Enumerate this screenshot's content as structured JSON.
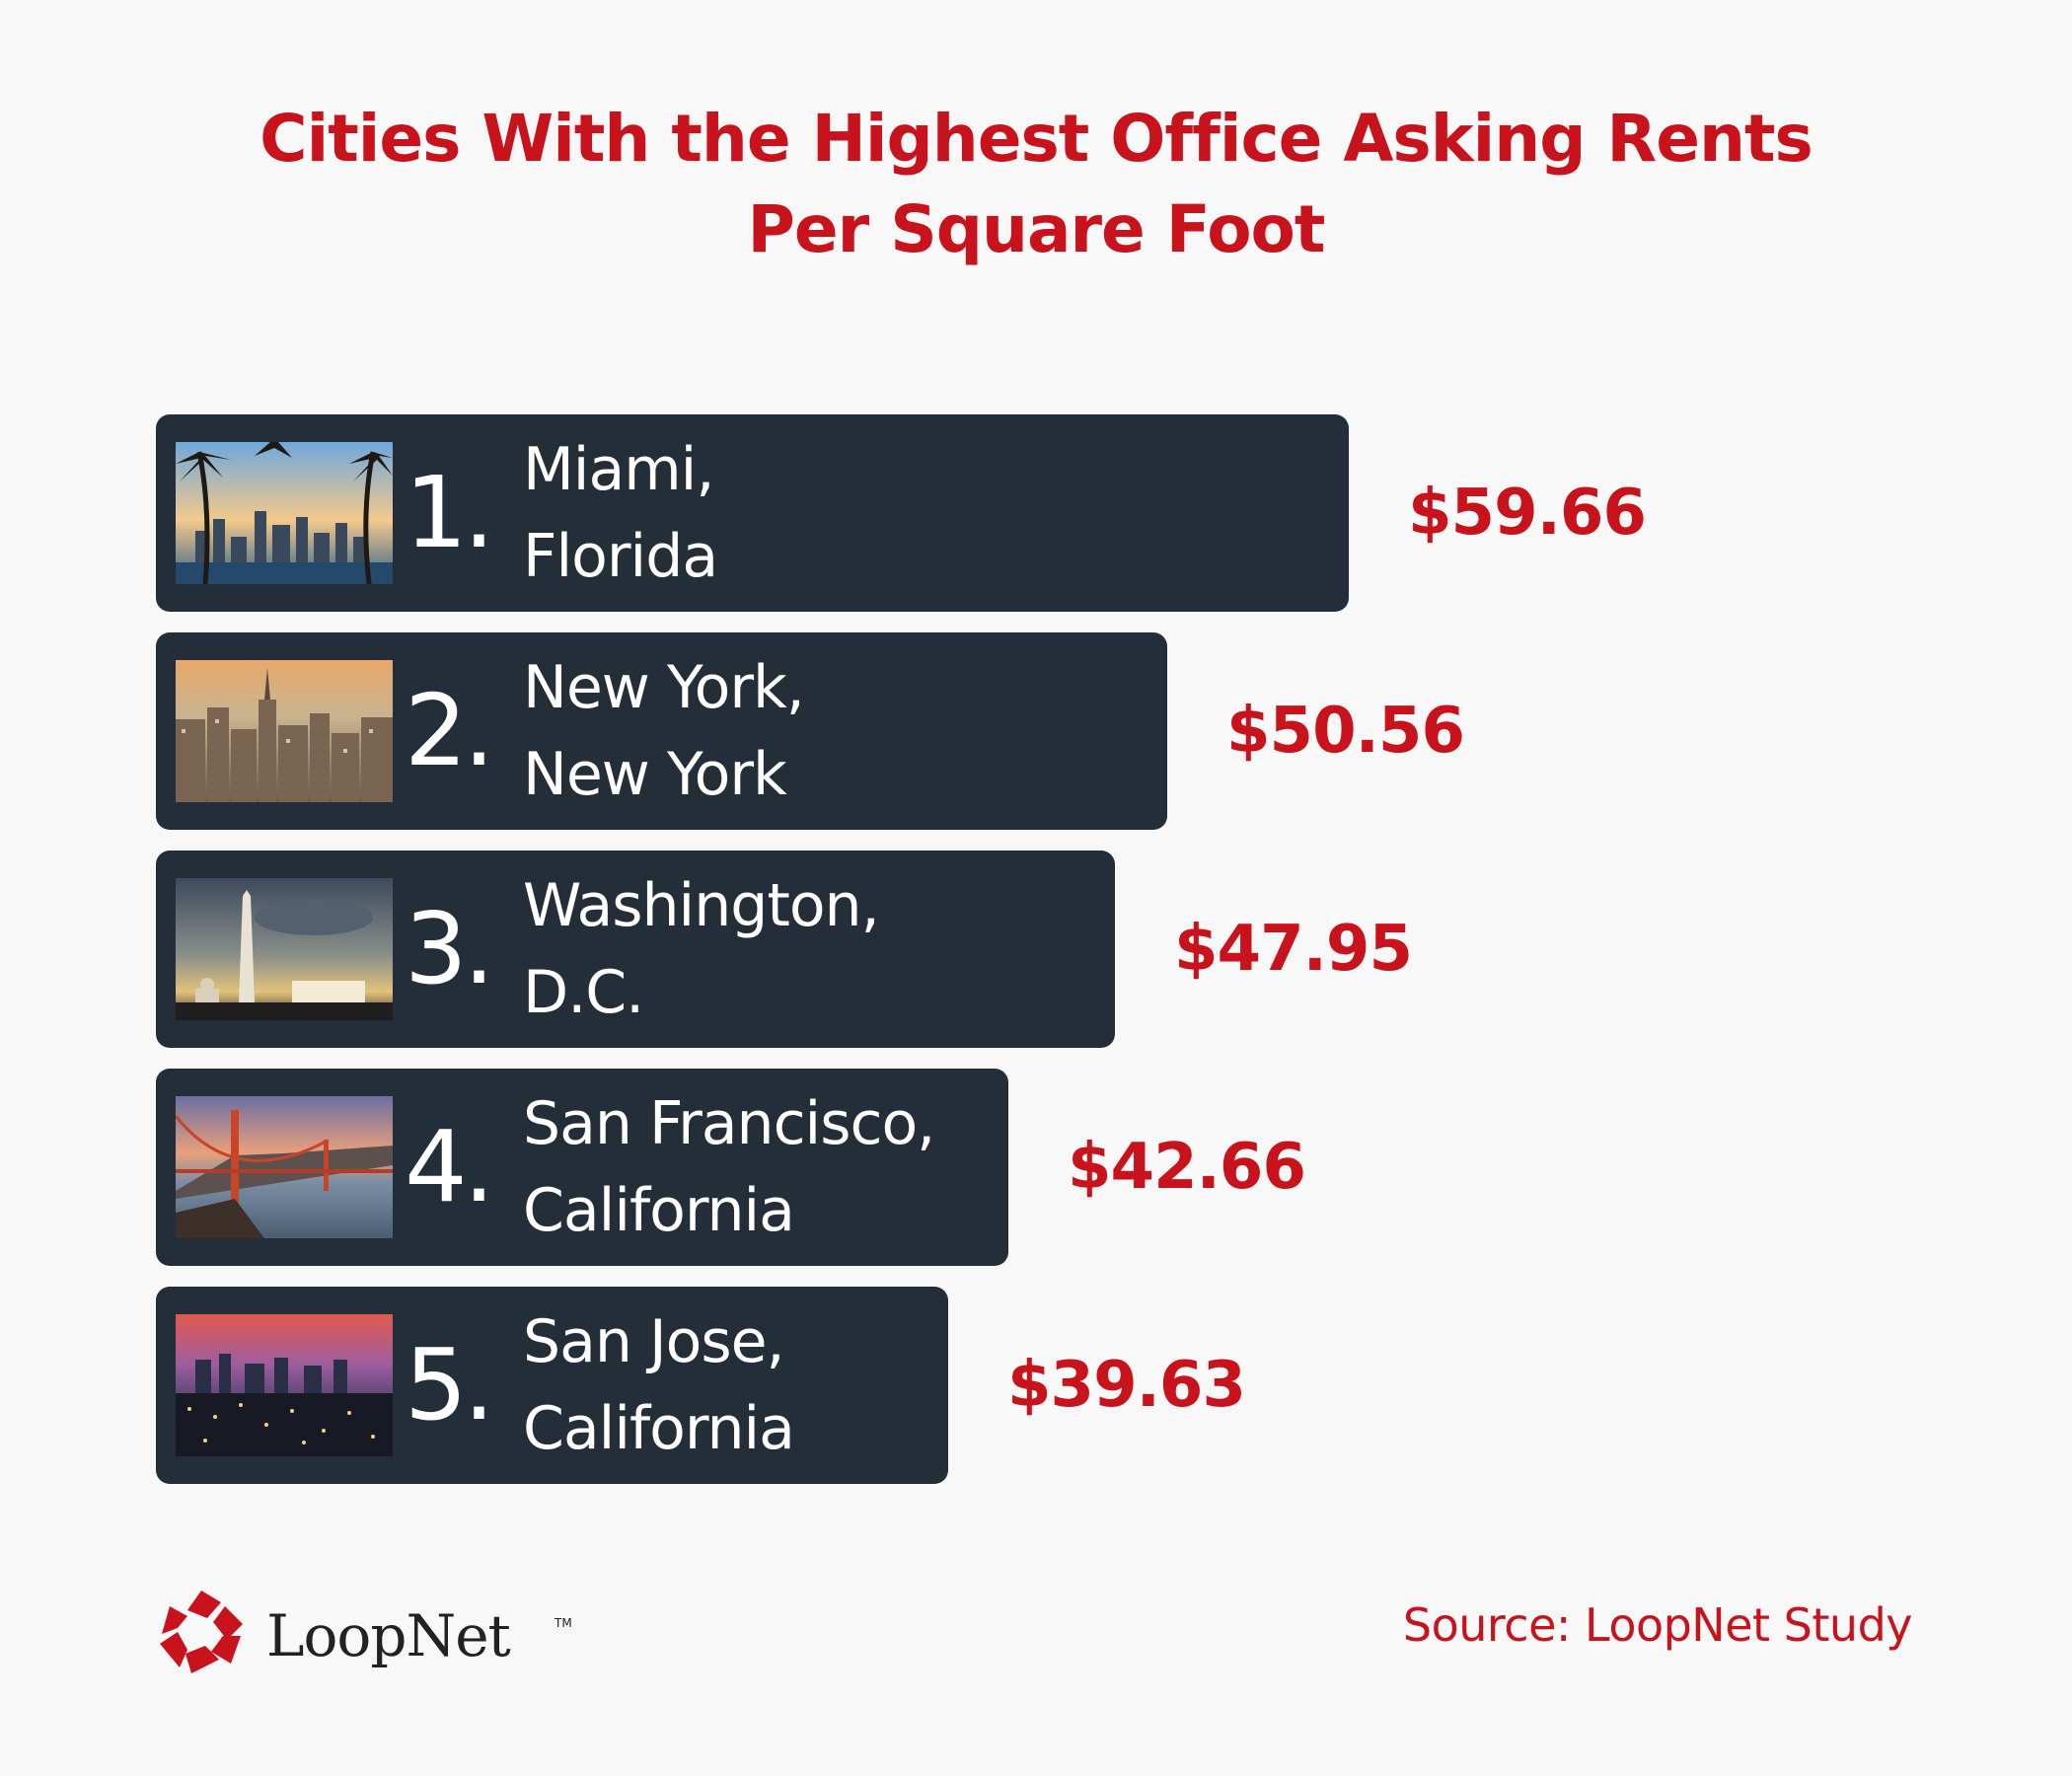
{
  "title_lines": [
    "Cities With the Highest Office Asking Rents",
    "Per Square Foot"
  ],
  "chart_data": {
    "type": "bar",
    "orientation": "horizontal",
    "title": "Cities With the Highest Office Asking Rents Per Square Foot",
    "categories": [
      "Miami, Florida",
      "New York, New York",
      "Washington, D.C.",
      "San Francisco, California",
      "San Jose, California"
    ],
    "values": [
      59.66,
      50.56,
      47.95,
      42.66,
      39.63
    ],
    "value_format": "$0.00",
    "grid": false,
    "legend": "none",
    "bars": [
      {
        "rank": "1.",
        "city_line1": "Miami,",
        "city_line2": "Florida",
        "label": "$59.66",
        "value": 59.66,
        "photo": "miami-skyline-palms"
      },
      {
        "rank": "2.",
        "city_line1": "New York,",
        "city_line2": "New York",
        "label": "$50.56",
        "value": 50.56,
        "photo": "new-york-skyline"
      },
      {
        "rank": "3.",
        "city_line1": "Washington,",
        "city_line2": "D.C.",
        "label": "$47.95",
        "value": 47.95,
        "photo": "washington-monument"
      },
      {
        "rank": "4.",
        "city_line1": "San Francisco,",
        "city_line2": "California",
        "label": "$42.66",
        "value": 42.66,
        "photo": "golden-gate-bridge"
      },
      {
        "rank": "5.",
        "city_line1": "San Jose,",
        "city_line2": "California",
        "label": "$39.63",
        "value": 39.63,
        "photo": "san-jose-night"
      }
    ]
  },
  "logo": {
    "name": "LoopNet",
    "tm": "TM"
  },
  "source": "Source: LoopNet Study",
  "colors": {
    "accent": "#c8121c",
    "bar": "#232e38",
    "background": "#f8f8f8"
  }
}
